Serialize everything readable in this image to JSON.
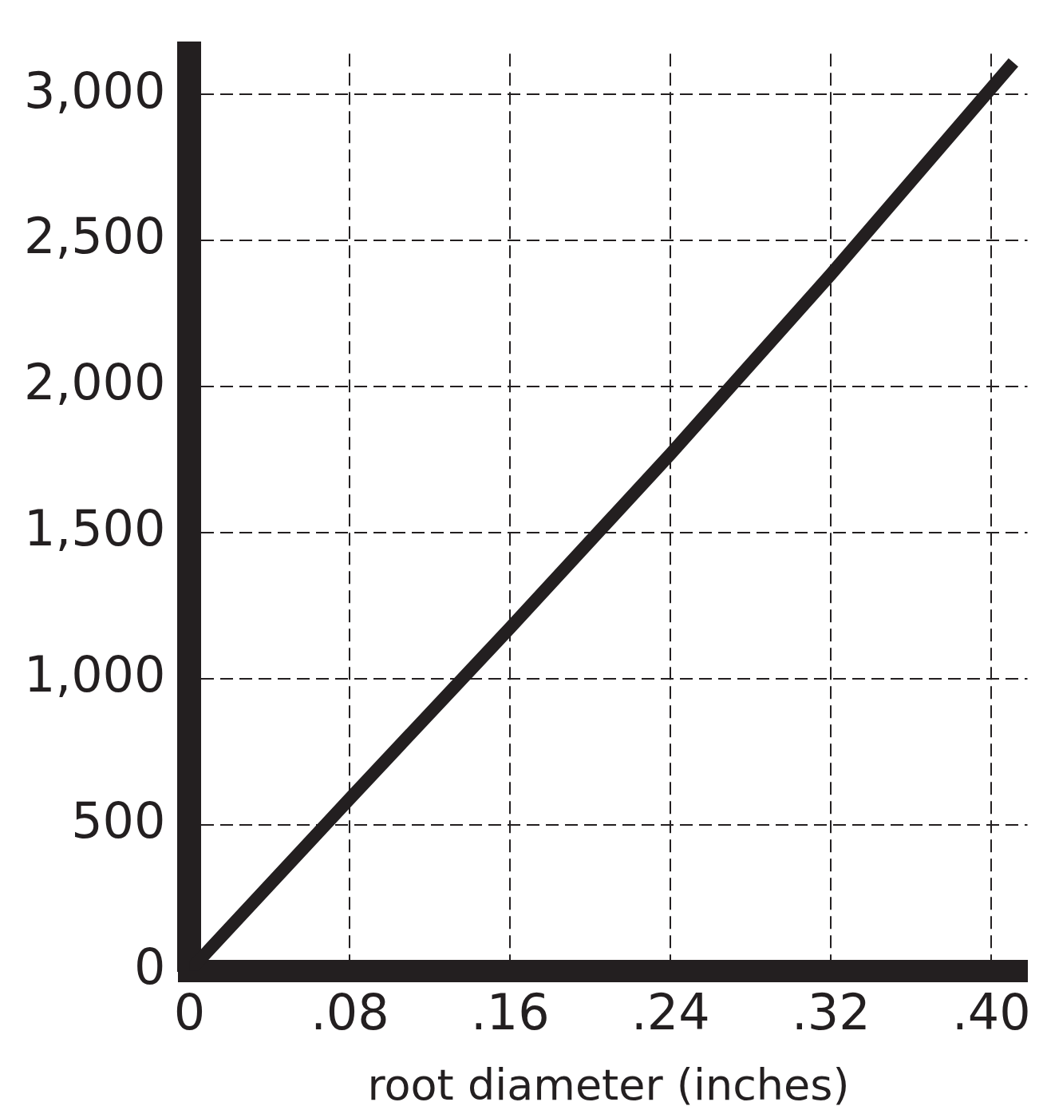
{
  "chart_data": {
    "type": "line",
    "xlabel": "root diameter (inches)",
    "x": [
      0,
      0.08,
      0.16,
      0.24,
      0.32,
      0.411
    ],
    "series": [
      {
        "color": "#231f20",
        "values": [
          0,
          590,
          1175,
          1770,
          2385,
          3110
        ]
      }
    ],
    "xlim": [
      0,
      0.418
    ],
    "ylim": [
      0,
      3140
    ],
    "xticks": [
      0,
      {
        "value": 0.08,
        "label": ".08"
      },
      {
        "value": 0.16,
        "label": ".16"
      },
      {
        "value": 0.24,
        "label": ".24"
      },
      {
        "value": 0.32,
        "label": ".32"
      },
      {
        "value": 0.4,
        "label": ".40"
      }
    ],
    "yticks": [
      0,
      500,
      {
        "value": 1000,
        "label": "1,000"
      },
      {
        "value": 1500,
        "label": "1,500"
      },
      {
        "value": 2000,
        "label": "2,000"
      },
      {
        "value": 2500,
        "label": "2,500"
      },
      {
        "value": 3000,
        "label": "3,000"
      }
    ],
    "grid": true,
    "legend": false,
    "marker": "none",
    "line_style": "solid"
  }
}
